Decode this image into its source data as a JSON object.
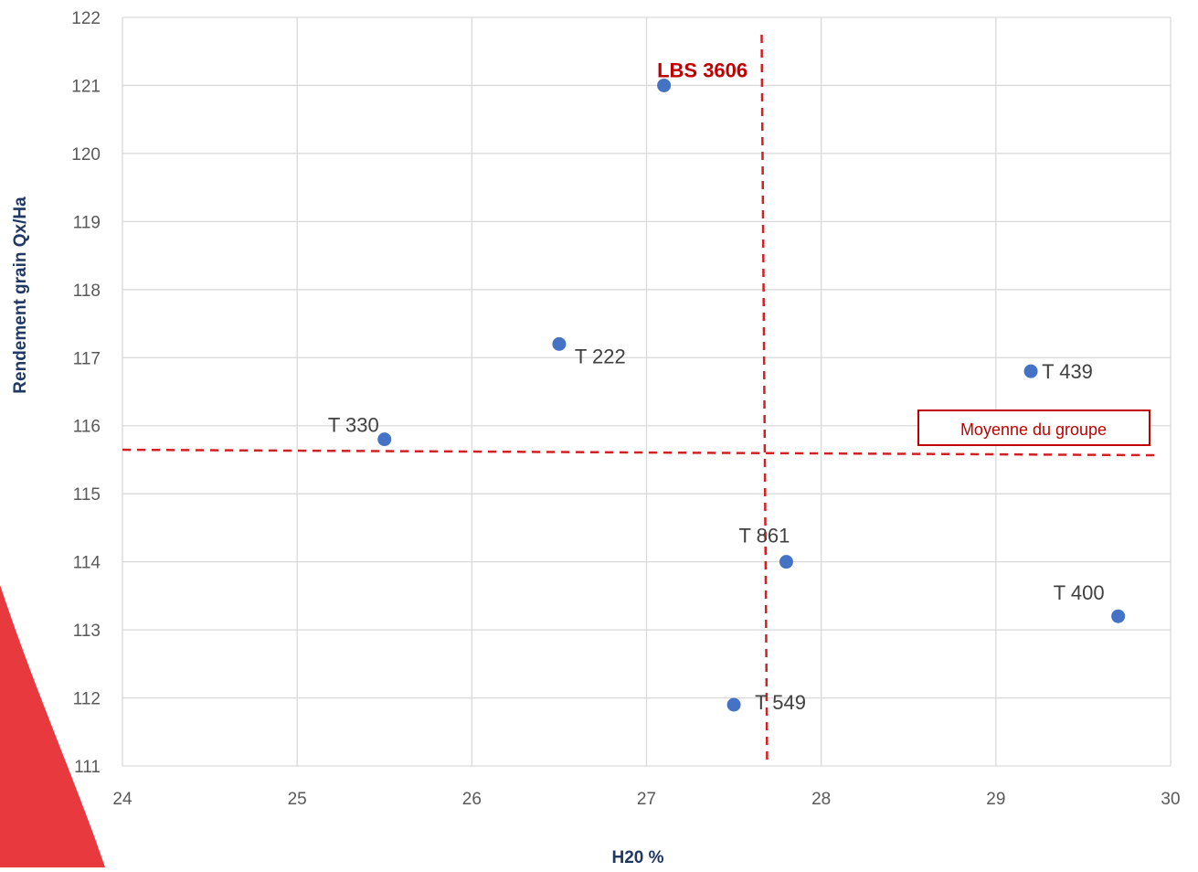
{
  "chart_data": {
    "type": "scatter",
    "title": "",
    "xlabel": "H20 %",
    "ylabel": "Rendement grain Qx/Ha",
    "xlim": [
      24,
      30
    ],
    "ylim": [
      111,
      122
    ],
    "xticks": [
      24,
      25,
      26,
      27,
      28,
      29,
      30
    ],
    "yticks": [
      111,
      112,
      113,
      114,
      115,
      116,
      117,
      118,
      119,
      120,
      121,
      122
    ],
    "grid": true,
    "points": [
      {
        "label": "LBS 3606",
        "x": 27.1,
        "y": 121.0,
        "highlight": true
      },
      {
        "label": "T 222",
        "x": 26.5,
        "y": 117.2
      },
      {
        "label": "T 330",
        "x": 25.5,
        "y": 115.8
      },
      {
        "label": "T 439",
        "x": 29.2,
        "y": 116.8
      },
      {
        "label": "T 861",
        "x": 27.8,
        "y": 114.0
      },
      {
        "label": "T 400",
        "x": 29.7,
        "y": 113.2
      },
      {
        "label": "T 549",
        "x": 27.5,
        "y": 111.9
      }
    ],
    "reference_lines": {
      "vertical_x": 27.68,
      "horizontal_y": 115.62,
      "horizontal_label": "Moyenne du groupe"
    }
  },
  "colors": {
    "point": "#4472c4",
    "highlight_text": "#c00000",
    "reference_line": "#d42020",
    "grid": "#d9d9d9",
    "axis_title": "#1f3864",
    "tick_text": "#595959",
    "point_label": "#404040",
    "decoration": "#e8393f"
  }
}
